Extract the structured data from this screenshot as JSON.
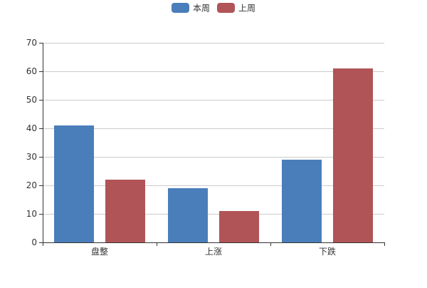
{
  "chart_data": {
    "type": "bar",
    "categories": [
      "盘整",
      "上涨",
      "下跌"
    ],
    "series": [
      {
        "name": "本周",
        "values": [
          41,
          19,
          29
        ],
        "color": "#4a7ebb"
      },
      {
        "name": "上周",
        "values": [
          22,
          11,
          61
        ],
        "color": "#b05458"
      }
    ],
    "ylim": [
      0,
      70
    ],
    "yticks": [
      0,
      10,
      20,
      30,
      40,
      50,
      60,
      70
    ],
    "grid": true,
    "legend_position": "top-center",
    "title": "",
    "xlabel": "",
    "ylabel": ""
  }
}
